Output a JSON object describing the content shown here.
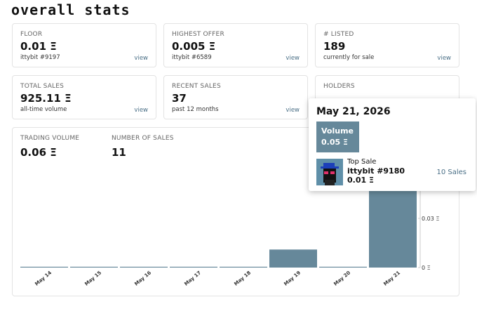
{
  "page_title": "overall stats",
  "cards": [
    {
      "label": "FLOOR",
      "value": "0.01 Ξ",
      "sub": "ittybit #9197",
      "link": "view"
    },
    {
      "label": "HIGHEST OFFER",
      "value": "0.005 Ξ",
      "sub": "ittybit #6589",
      "link": "view"
    },
    {
      "label": "# LISTED",
      "value": "189",
      "sub": "currently for sale",
      "link": "view"
    },
    {
      "label": "TOTAL SALES",
      "value": "925.11 Ξ",
      "sub": "all-time volume",
      "link": "view"
    },
    {
      "label": "RECENT SALES",
      "value": "37",
      "sub": "past 12 months",
      "link": "view"
    },
    {
      "label": "HOLDERS"
    }
  ],
  "stats": [
    {
      "label": "TRADING VOLUME",
      "value": "0.06 Ξ"
    },
    {
      "label": "NUMBER OF SALES",
      "value": "11"
    }
  ],
  "chart_data": {
    "type": "bar",
    "categories": [
      "May 14",
      "May 15",
      "May 16",
      "May 17",
      "May 18",
      "May 19",
      "May 20",
      "May 21"
    ],
    "values": [
      0.0005,
      0.0005,
      0.0005,
      0.0005,
      0.0005,
      0.011,
      0.0005,
      0.05
    ],
    "color": "#66889a",
    "ylim": [
      0,
      0.06
    ],
    "yticks": [
      {
        "value": 0,
        "label": "0 Ξ"
      },
      {
        "value": 0.03,
        "label": "0.03 Ξ"
      }
    ]
  },
  "tooltip": {
    "date": "May 21, 2026",
    "volume_label": "Volume",
    "volume": "0.05 Ξ",
    "top_sale_label": "Top Sale",
    "item": "ittybit #9180",
    "price": "0.01 Ξ",
    "sales": "10 Sales"
  }
}
